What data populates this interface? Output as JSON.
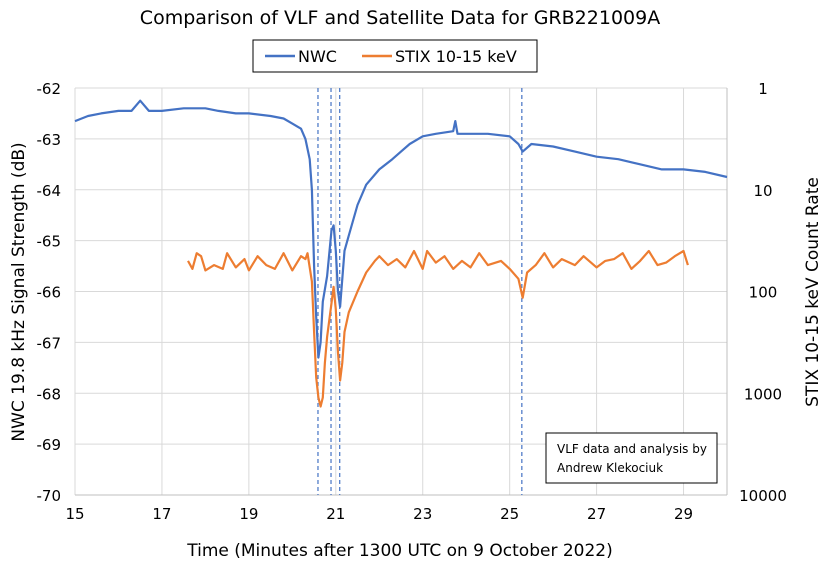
{
  "chart_data": {
    "type": "line",
    "title": "Comparison of VLF and Satellite Data for GRB221009A",
    "xlabel": "Time (Minutes after 1300 UTC on 9 October 2022)",
    "ylabel": "NWC 19.8 kHz Signal Strength (dB)",
    "y2label": "STIX 10-15 keV Count Rate",
    "xlim": [
      15,
      30
    ],
    "ylim": [
      -70,
      -62
    ],
    "y2lim": [
      10000,
      1
    ],
    "y2scale": "log",
    "y2inverted": true,
    "xticks": [
      "15",
      "17",
      "19",
      "21",
      "23",
      "25",
      "27",
      "29"
    ],
    "yticks": [
      "-62",
      "-63",
      "-64",
      "-65",
      "-66",
      "-67",
      "-68",
      "-69",
      "-70"
    ],
    "y2ticks": [
      "1",
      "10",
      "100",
      "1000",
      "10000"
    ],
    "grid": true,
    "legend": "top",
    "annotation": [
      "VLF data and analysis by",
      "Andrew Klekociuk"
    ],
    "vertical_markers": [
      20.59,
      20.89,
      21.09,
      25.28
    ],
    "series": [
      {
        "name": "NWC",
        "axis": "left",
        "color": "#4472c4",
        "x": [
          15.0,
          15.3,
          15.6,
          16.0,
          16.3,
          16.5,
          16.7,
          17.0,
          17.5,
          18.0,
          18.3,
          18.7,
          19.0,
          19.5,
          19.8,
          20.0,
          20.2,
          20.3,
          20.4,
          20.45,
          20.5,
          20.55,
          20.6,
          20.65,
          20.7,
          20.8,
          20.9,
          20.95,
          21.0,
          21.05,
          21.1,
          21.2,
          21.3,
          21.5,
          21.7,
          22.0,
          22.3,
          22.5,
          22.7,
          23.0,
          23.3,
          23.7,
          23.75,
          23.8,
          24.0,
          24.5,
          25.0,
          25.2,
          25.3,
          25.5,
          26.0,
          26.5,
          27.0,
          27.5,
          28.0,
          28.5,
          29.0,
          29.5,
          30.0
        ],
        "y": [
          -62.65,
          -62.55,
          -62.5,
          -62.45,
          -62.45,
          -62.25,
          -62.45,
          -62.45,
          -62.4,
          -62.4,
          -62.45,
          -62.5,
          -62.5,
          -62.55,
          -62.6,
          -62.7,
          -62.8,
          -63.0,
          -63.4,
          -64.0,
          -65.5,
          -66.5,
          -67.3,
          -67.0,
          -66.2,
          -65.7,
          -64.8,
          -64.7,
          -65.2,
          -66.0,
          -66.3,
          -65.2,
          -64.9,
          -64.3,
          -63.9,
          -63.6,
          -63.4,
          -63.25,
          -63.1,
          -62.95,
          -62.9,
          -62.85,
          -62.65,
          -62.9,
          -62.9,
          -62.9,
          -62.95,
          -63.1,
          -63.25,
          -63.1,
          -63.15,
          -63.25,
          -63.35,
          -63.4,
          -63.5,
          -63.6,
          -63.6,
          -63.65,
          -63.75
        ]
      },
      {
        "name": "STIX 10-15 keV",
        "axis": "right",
        "color": "#ed7d31",
        "x": [
          17.6,
          17.7,
          17.8,
          17.9,
          18.0,
          18.2,
          18.4,
          18.5,
          18.7,
          18.9,
          19.0,
          19.2,
          19.4,
          19.6,
          19.8,
          20.0,
          20.2,
          20.3,
          20.35,
          20.45,
          20.5,
          20.55,
          20.6,
          20.65,
          20.7,
          20.75,
          20.8,
          20.9,
          20.95,
          21.0,
          21.05,
          21.1,
          21.15,
          21.2,
          21.3,
          21.5,
          21.7,
          21.9,
          22.0,
          22.2,
          22.4,
          22.6,
          22.8,
          23.0,
          23.1,
          23.3,
          23.5,
          23.7,
          23.9,
          24.1,
          24.3,
          24.5,
          24.8,
          25.0,
          25.2,
          25.3,
          25.4,
          25.6,
          25.8,
          26.0,
          26.2,
          26.5,
          26.7,
          27.0,
          27.2,
          27.4,
          27.6,
          27.8,
          28.0,
          28.2,
          28.4,
          28.6,
          28.8,
          29.0,
          29.1
        ],
        "y": [
          50,
          60,
          42,
          45,
          62,
          55,
          60,
          42,
          58,
          48,
          62,
          45,
          55,
          60,
          42,
          62,
          45,
          48,
          42,
          80,
          250,
          700,
          1100,
          1350,
          1100,
          500,
          280,
          130,
          90,
          150,
          400,
          750,
          500,
          250,
          160,
          100,
          65,
          50,
          45,
          55,
          48,
          58,
          40,
          60,
          40,
          52,
          45,
          60,
          50,
          58,
          42,
          55,
          50,
          60,
          75,
          115,
          65,
          55,
          42,
          58,
          48,
          55,
          45,
          58,
          50,
          48,
          42,
          60,
          50,
          40,
          55,
          52,
          45,
          40,
          55
        ]
      }
    ]
  }
}
